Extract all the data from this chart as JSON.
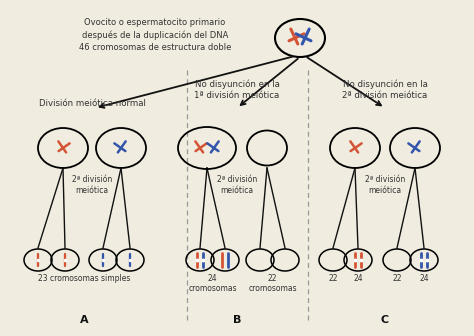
{
  "bg_color": "#f0ece0",
  "title_text": "Ovocito o espermatocito primario\ndespués de la duplicación del DNA\n46 cromosomas de estructura doble",
  "col_A_label": "División meiótica normal",
  "col_B_label": "No disyunción en la\n1ª división meiótica",
  "col_C_label": "No disyunción en la\n2ª división meiótica",
  "div2_label": "2ª división\nmeiótica",
  "bottom_A": "23 cromosomas simples",
  "bottom_B1": "24\ncromosomas",
  "bottom_B2": "22\ncromosomas",
  "bottom_C": [
    "22",
    "24",
    "22",
    "24"
  ],
  "label_A": "A",
  "label_B": "B",
  "label_C": "C",
  "orange": "#d45535",
  "blue": "#3355aa",
  "black": "#111111",
  "text_color": "#333333"
}
